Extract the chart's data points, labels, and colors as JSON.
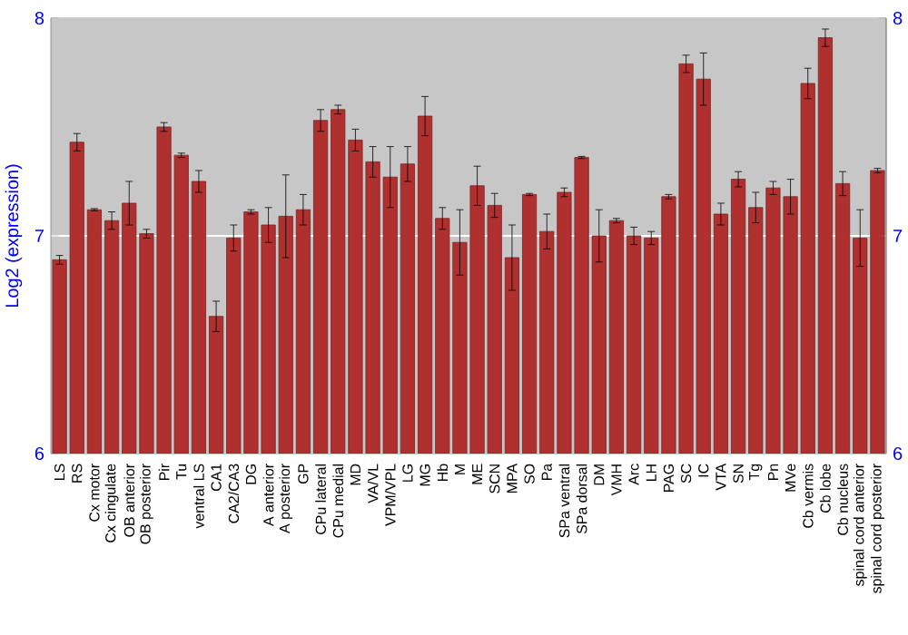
{
  "chart_data": {
    "type": "bar",
    "ylabel": "Log2 (expression)",
    "color": "#b03030",
    "categories": [
      "LS",
      "RS",
      "Cx motor",
      "Cx cingulate",
      "OB anterior",
      "OB posterior",
      "Pir",
      "Tu",
      "ventral LS",
      "CA1",
      "CA2/CA3",
      "DG",
      "A anterior",
      "A posterior",
      "GP",
      "CPu lateral",
      "CPu medial",
      "MD",
      "VA/VL",
      "VPM/VPL",
      "LG",
      "MG",
      "Hb",
      "M",
      "ME",
      "SCN",
      "MPA",
      "SO",
      "Pa",
      "SPa ventral",
      "SPa dorsal",
      "DM",
      "VMH",
      "Arc",
      "LH",
      "PAG",
      "SC",
      "IC",
      "VTA",
      "SN",
      "Tg",
      "Pn",
      "MVe",
      "Cb vermis",
      "Cb lobe",
      "Cb nucleus",
      "spinal cord anterior",
      "spinal cord posterior"
    ],
    "values": [
      6.89,
      7.43,
      7.12,
      7.07,
      7.15,
      7.01,
      7.5,
      7.37,
      7.25,
      6.63,
      6.99,
      7.11,
      7.05,
      7.09,
      7.12,
      7.53,
      7.58,
      7.44,
      7.34,
      7.27,
      7.33,
      7.55,
      7.08,
      6.97,
      7.23,
      7.14,
      6.9,
      7.19,
      7.02,
      7.2,
      7.36,
      7.0,
      7.07,
      7.0,
      6.99,
      7.18,
      7.79,
      7.72,
      7.1,
      7.26,
      7.13,
      7.22,
      7.18,
      7.7,
      7.91,
      7.24,
      6.99,
      7.3
    ],
    "errors": [
      0.02,
      0.04,
      0.005,
      0.04,
      0.1,
      0.02,
      0.02,
      0.01,
      0.05,
      0.07,
      0.06,
      0.01,
      0.08,
      0.19,
      0.07,
      0.05,
      0.02,
      0.05,
      0.07,
      0.14,
      0.08,
      0.09,
      0.05,
      0.15,
      0.09,
      0.055,
      0.15,
      0.005,
      0.08,
      0.02,
      0.005,
      0.12,
      0.01,
      0.04,
      0.03,
      0.01,
      0.04,
      0.12,
      0.05,
      0.035,
      0.07,
      0.03,
      0.08,
      0.07,
      0.04,
      0.055,
      0.13,
      0.01
    ],
    "ylim": [
      6,
      8
    ],
    "yticks": [
      6,
      7,
      8
    ],
    "y2lim": [
      6,
      8
    ],
    "y2ticks": [
      6,
      7,
      8
    ],
    "grid": "y"
  }
}
